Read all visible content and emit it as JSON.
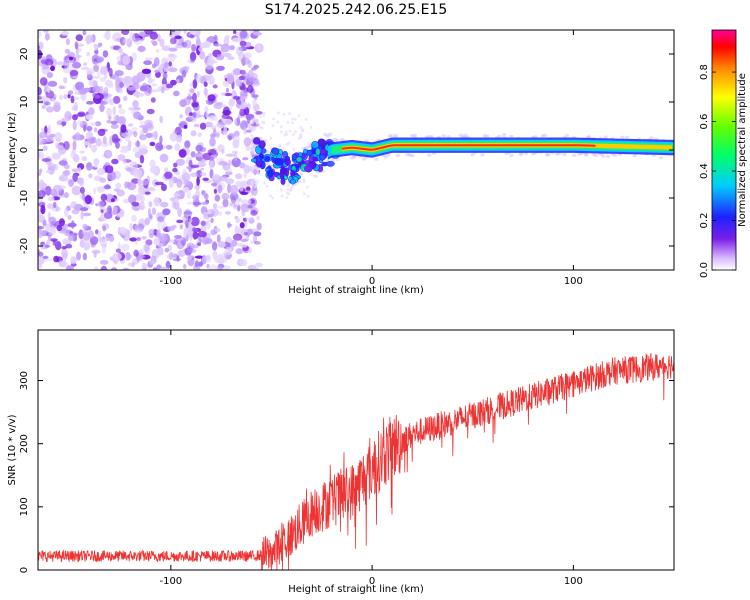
{
  "title": "S174.2025.242.06.25.E15",
  "chart_data": [
    {
      "type": "heatmap",
      "xlabel": "Height of straight line (km)",
      "ylabel": "Frequency (Hz)",
      "xlim": [
        -166,
        150
      ],
      "ylim": [
        -25,
        25
      ],
      "xticks": [
        -100,
        0,
        100
      ],
      "yticks": [
        -20,
        -10,
        0,
        10,
        20
      ],
      "colorbar": {
        "label": "Normalized spectral amplitude",
        "range": [
          0.0,
          0.97
        ],
        "ticks": [
          0.0,
          0.2,
          0.4,
          0.6,
          0.8
        ]
      },
      "signal_line": {
        "description_points_x": [
          -58,
          -50,
          -40,
          -30,
          -20,
          -10,
          0,
          10,
          20,
          50,
          100,
          150
        ],
        "description_points_y": [
          0,
          -3,
          -4,
          -2,
          0,
          0.5,
          0,
          1,
          1,
          1,
          1,
          0.5
        ]
      },
      "noise_region_x": [
        -166,
        -60
      ]
    },
    {
      "type": "line",
      "xlabel": "Height of straight line (km)",
      "ylabel": "SNR (10 * v/v)",
      "xlim": [
        -166,
        150
      ],
      "ylim": [
        0,
        380
      ],
      "xticks": [
        -100,
        0,
        100
      ],
      "yticks": [
        0,
        100,
        200,
        300
      ],
      "series": [
        {
          "name": "SNR",
          "color": "#ee3333",
          "trend_x": [
            -166,
            -100,
            -60,
            -50,
            -40,
            -30,
            -20,
            -10,
            0,
            10,
            20,
            40,
            60,
            80,
            100,
            120,
            150
          ],
          "trend_y": [
            22,
            22,
            22,
            25,
            55,
            90,
            110,
            125,
            160,
            195,
            215,
            235,
            255,
            275,
            295,
            315,
            325
          ]
        }
      ]
    }
  ]
}
